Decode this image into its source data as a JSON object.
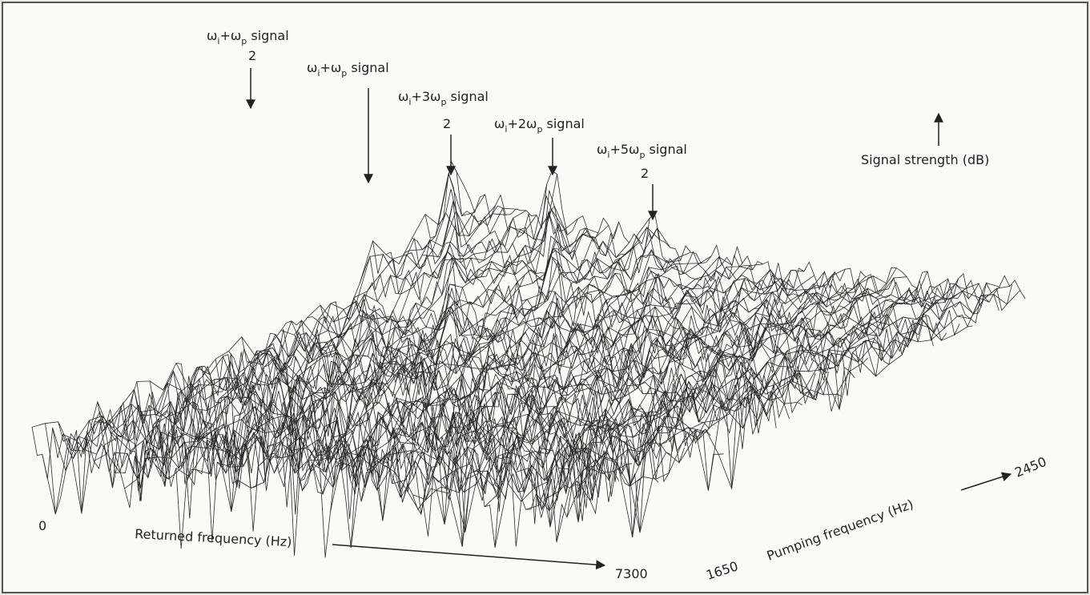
{
  "figure": {
    "annotations": [
      {
        "parts": [
          {
            "text": "ω"
          },
          {
            "text": "i",
            "style": "sub"
          },
          {
            "text": "+ω"
          },
          {
            "text": "p",
            "style": "sub"
          },
          {
            "text": " signal"
          }
        ],
        "denominator": "2"
      },
      {
        "parts": [
          {
            "text": "ω"
          },
          {
            "text": "i",
            "style": "sub"
          },
          {
            "text": "+ω"
          },
          {
            "text": "p",
            "style": "sub"
          },
          {
            "text": " signal"
          }
        ]
      },
      {
        "parts": [
          {
            "text": "ω"
          },
          {
            "text": "i",
            "style": "sub"
          },
          {
            "text": "+3ω"
          },
          {
            "text": "p",
            "style": "sub"
          },
          {
            "text": " signal"
          }
        ],
        "denominator": "2"
      },
      {
        "parts": [
          {
            "text": "ω"
          },
          {
            "text": "i",
            "style": "sub"
          },
          {
            "text": "+2ω"
          },
          {
            "text": "p",
            "style": "sub"
          },
          {
            "text": " signal"
          }
        ]
      },
      {
        "parts": [
          {
            "text": "ω"
          },
          {
            "text": "i",
            "style": "sub"
          },
          {
            "text": "+5ω"
          },
          {
            "text": "p",
            "style": "sub"
          },
          {
            "text": " signal"
          }
        ],
        "denominator": "2"
      }
    ],
    "z_label": "Signal strength (dB)",
    "x_label": "Returned frequency (Hz)",
    "x_start": "0",
    "x_end": "7300",
    "y_label": "Pumping frequency (Hz)",
    "y_start": "1650",
    "y_end": "2450"
  }
}
